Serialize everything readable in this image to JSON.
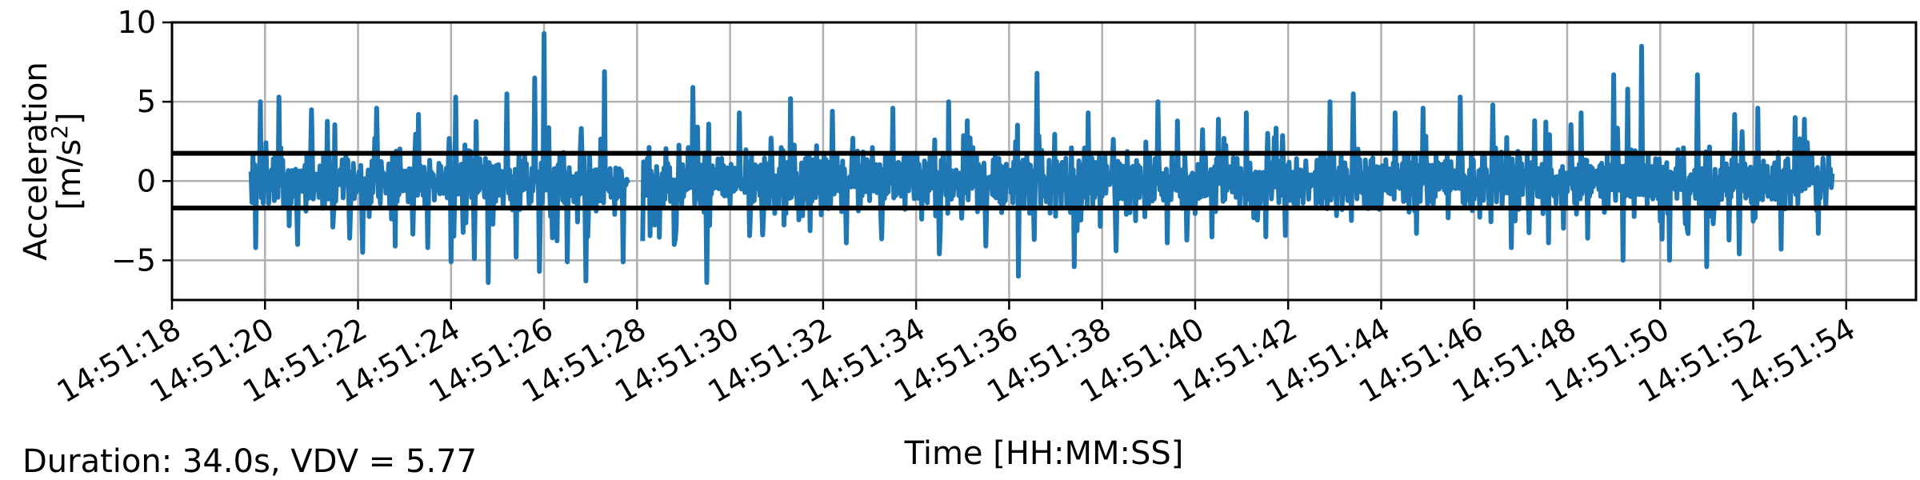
{
  "chart_data": {
    "type": "line",
    "title": "",
    "xlabel": "Time [HH:MM:SS]",
    "ylabel_line1": "Acceleration",
    "ylabel_line2_base": "[m/s",
    "ylabel_line2_sup": "2",
    "ylabel_line2_end": "]",
    "footnote": "Duration: 34.0s, VDV = 5.77",
    "xlim": [
      "14:51:18.0",
      "14:51:55.5"
    ],
    "ylim": [
      -7.5,
      10
    ],
    "grid": true,
    "x_ticks": [
      "14:51:18",
      "14:51:20",
      "14:51:22",
      "14:51:24",
      "14:51:26",
      "14:51:28",
      "14:51:30",
      "14:51:32",
      "14:51:34",
      "14:51:36",
      "14:51:38",
      "14:51:40",
      "14:51:42",
      "14:51:44",
      "14:51:46",
      "14:51:48",
      "14:51:50",
      "14:51:52",
      "14:51:54"
    ],
    "y_ticks": [
      {
        "value": 10,
        "label": "10"
      },
      {
        "value": 5,
        "label": "5"
      },
      {
        "value": 0,
        "label": "0"
      },
      {
        "value": -5,
        "label": "−5"
      }
    ],
    "reference_lines": [
      1.75,
      -1.7
    ],
    "series": [
      {
        "color": "#1f77b4",
        "x_start": "14:51:19.7",
        "x_end": "14:51:53.7",
        "gap": [
          "14:51:27.8",
          "14:51:28.1"
        ],
        "peaks": [
          {
            "x": "14:51:19.9",
            "y": 5.0
          },
          {
            "x": "14:51:20.3",
            "y": 5.3
          },
          {
            "x": "14:51:21.0",
            "y": 4.5
          },
          {
            "x": "14:51:22.4",
            "y": 4.6
          },
          {
            "x": "14:51:23.3",
            "y": 4.2
          },
          {
            "x": "14:51:24.1",
            "y": 5.3
          },
          {
            "x": "14:51:25.2",
            "y": 5.5
          },
          {
            "x": "14:51:25.8",
            "y": 6.5
          },
          {
            "x": "14:51:26.0",
            "y": 9.3
          },
          {
            "x": "14:51:27.3",
            "y": 6.9
          },
          {
            "x": "14:51:29.2",
            "y": 5.9
          },
          {
            "x": "14:51:30.2",
            "y": 4.3
          },
          {
            "x": "14:51:31.3",
            "y": 5.2
          },
          {
            "x": "14:51:32.2",
            "y": 4.4
          },
          {
            "x": "14:51:33.5",
            "y": 4.6
          },
          {
            "x": "14:51:34.7",
            "y": 5.0
          },
          {
            "x": "14:51:35.1",
            "y": 3.8
          },
          {
            "x": "14:51:36.6",
            "y": 6.8
          },
          {
            "x": "14:51:37.7",
            "y": 4.3
          },
          {
            "x": "14:51:39.2",
            "y": 5.0
          },
          {
            "x": "14:51:40.5",
            "y": 3.9
          },
          {
            "x": "14:51:41.1",
            "y": 4.3
          },
          {
            "x": "14:51:42.9",
            "y": 5.0
          },
          {
            "x": "14:51:43.4",
            "y": 5.5
          },
          {
            "x": "14:51:44.3",
            "y": 4.3
          },
          {
            "x": "14:51:44.9",
            "y": 4.6
          },
          {
            "x": "14:51:45.7",
            "y": 5.3
          },
          {
            "x": "14:51:46.4",
            "y": 4.8
          },
          {
            "x": "14:51:47.3",
            "y": 3.8
          },
          {
            "x": "14:51:48.3",
            "y": 4.3
          },
          {
            "x": "14:51:49.0",
            "y": 6.7
          },
          {
            "x": "14:51:49.3",
            "y": 5.8
          },
          {
            "x": "14:51:49.6",
            "y": 8.5
          },
          {
            "x": "14:51:50.8",
            "y": 6.7
          },
          {
            "x": "14:51:51.6",
            "y": 4.2
          },
          {
            "x": "14:51:52.1",
            "y": 4.6
          },
          {
            "x": "14:51:52.9",
            "y": 4.0
          },
          {
            "x": "14:51:53.1",
            "y": 3.9
          }
        ],
        "troughs": [
          {
            "x": "14:51:19.8",
            "y": -4.2
          },
          {
            "x": "14:51:20.7",
            "y": -4.0
          },
          {
            "x": "14:51:21.0",
            "y": -4.2
          },
          {
            "x": "14:51:22.1",
            "y": -4.5
          },
          {
            "x": "14:51:22.8",
            "y": -4.1
          },
          {
            "x": "14:51:23.5",
            "y": -4.2
          },
          {
            "x": "14:51:24.0",
            "y": -5.1
          },
          {
            "x": "14:51:24.5",
            "y": -4.9
          },
          {
            "x": "14:51:24.8",
            "y": -6.4
          },
          {
            "x": "14:51:25.4",
            "y": -4.8
          },
          {
            "x": "14:51:25.9",
            "y": -5.7
          },
          {
            "x": "14:51:26.5",
            "y": -5.1
          },
          {
            "x": "14:51:26.9",
            "y": -6.3
          },
          {
            "x": "14:51:27.7",
            "y": -5.1
          },
          {
            "x": "14:51:28.8",
            "y": -4.0
          },
          {
            "x": "14:51:29.5",
            "y": -6.4
          },
          {
            "x": "14:51:30.7",
            "y": -3.4
          },
          {
            "x": "14:51:32.5",
            "y": -3.9
          },
          {
            "x": "14:51:34.5",
            "y": -4.6
          },
          {
            "x": "14:51:35.5",
            "y": -4.1
          },
          {
            "x": "14:51:36.2",
            "y": -6.0
          },
          {
            "x": "14:51:37.4",
            "y": -5.4
          },
          {
            "x": "14:51:38.3",
            "y": -4.4
          },
          {
            "x": "14:51:39.4",
            "y": -3.9
          },
          {
            "x": "14:51:40.5",
            "y": -4.2
          },
          {
            "x": "14:51:42.9",
            "y": -4.2
          },
          {
            "x": "14:51:44.3",
            "y": -5.1
          },
          {
            "x": "14:51:46.8",
            "y": -4.2
          },
          {
            "x": "14:51:47.6",
            "y": -3.9
          },
          {
            "x": "14:51:49.2",
            "y": -5.0
          },
          {
            "x": "14:51:50.2",
            "y": -5.0
          },
          {
            "x": "14:51:51.0",
            "y": -5.4
          },
          {
            "x": "14:51:51.7",
            "y": -4.6
          },
          {
            "x": "14:51:52.6",
            "y": -4.3
          },
          {
            "x": "14:51:53.4",
            "y": -3.3
          }
        ]
      }
    ]
  }
}
